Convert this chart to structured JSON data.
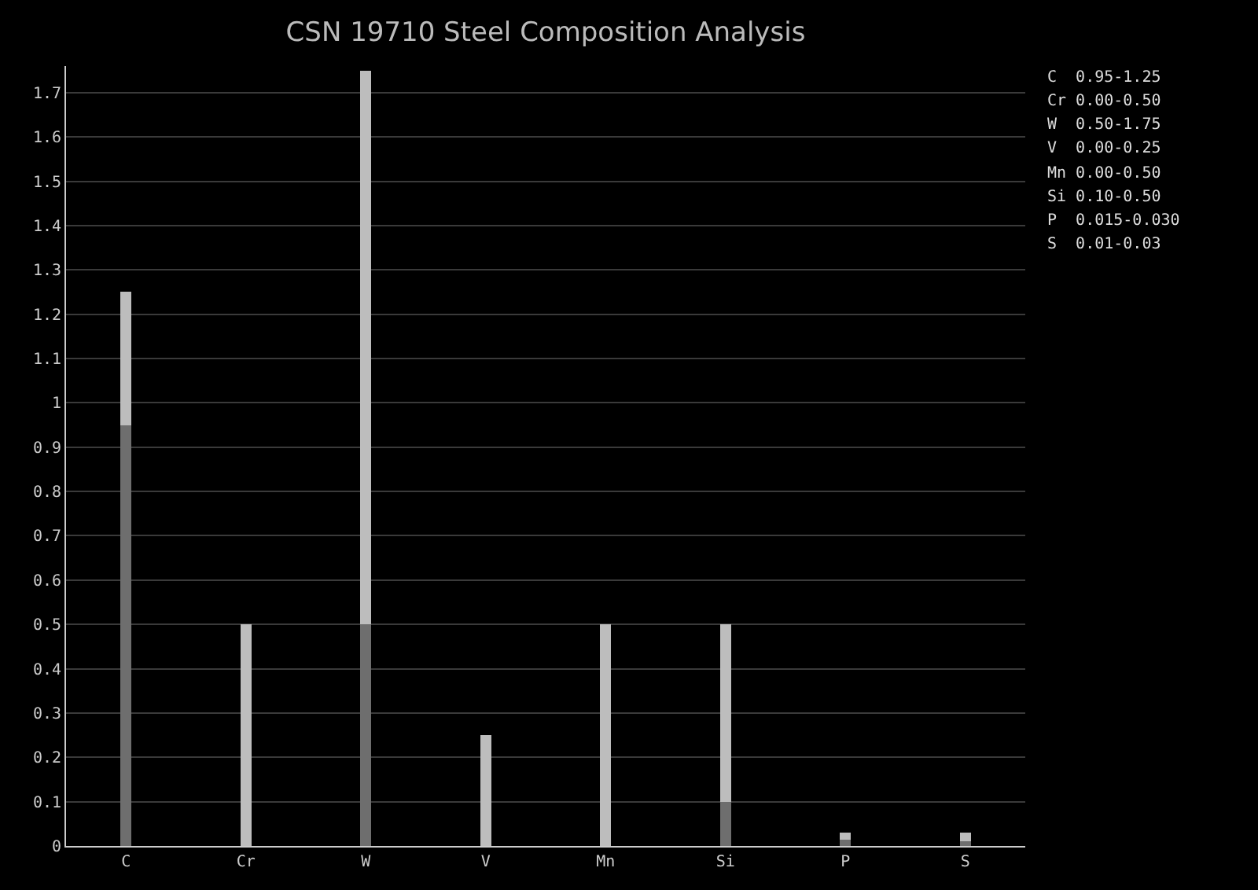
{
  "chart_data": {
    "type": "bar",
    "title": "CSN 19710 Steel Composition Analysis",
    "categories": [
      "C",
      "Cr",
      "W",
      "V",
      "Mn",
      "Si",
      "P",
      "S"
    ],
    "stacked": true,
    "series": [
      {
        "color": "#6e6e6e",
        "values": [
          0.95,
          0,
          0.5,
          0,
          0,
          0.1,
          0.015,
          0.01
        ]
      },
      {
        "color": "#bdbdbd",
        "values": [
          0.3,
          0.5,
          1.25,
          0.25,
          0.5,
          0.4,
          0.015,
          0.02
        ]
      }
    ],
    "ylim": [
      0,
      1.76
    ],
    "yticks": [
      0,
      0.1,
      0.2,
      0.3,
      0.4,
      0.5,
      0.6,
      0.7,
      0.8,
      0.9,
      1,
      1.1,
      1.2,
      1.3,
      1.4,
      1.5,
      1.6,
      1.7
    ],
    "grid": "y",
    "annotations": [
      "C  0.95-1.25",
      "Cr 0.00-0.50",
      "W  0.50-1.75",
      "V  0.00-0.25",
      "Mn 0.00-0.50",
      "Si 0.10-0.50",
      "P  0.015-0.030",
      "S  0.01-0.03"
    ]
  }
}
